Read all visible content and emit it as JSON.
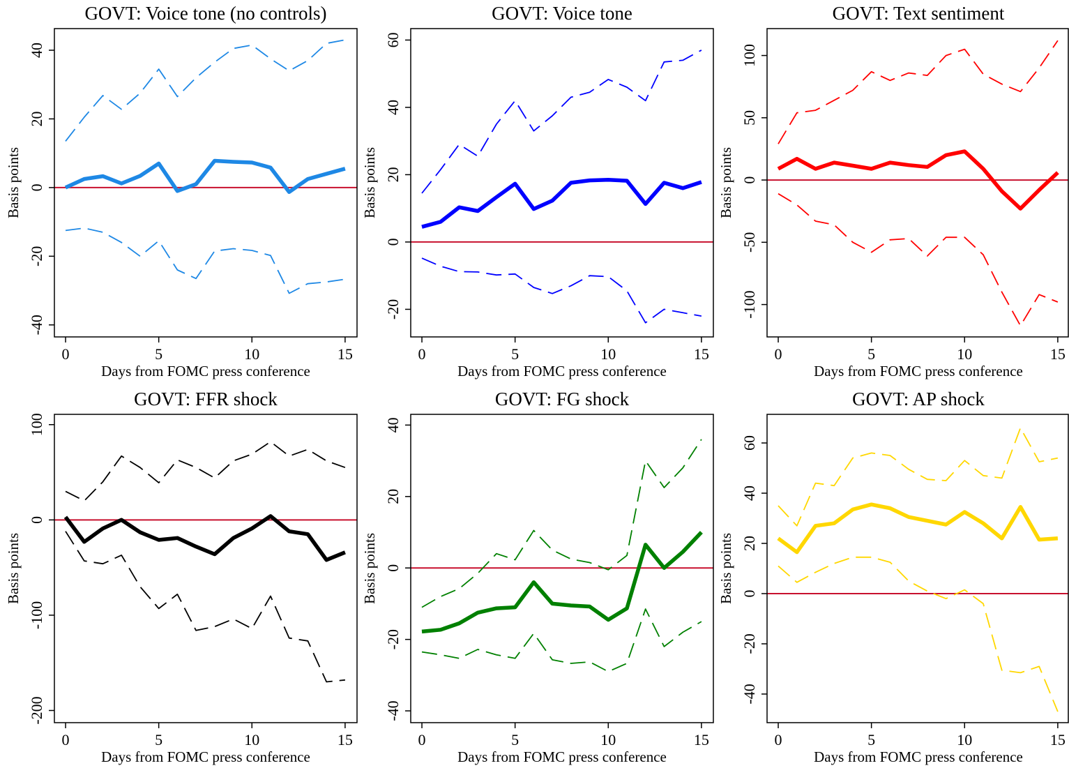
{
  "chart_data": [
    {
      "type": "line",
      "title": "GOVT: Voice tone (no controls)",
      "xlabel": "Days from FOMC press conference",
      "ylabel": "Basis points",
      "x": [
        0,
        1,
        2,
        3,
        4,
        5,
        6,
        7,
        8,
        9,
        10,
        11,
        12,
        13,
        14,
        15
      ],
      "xlim": [
        -0.6,
        15.64
      ],
      "xticks": [
        0,
        5,
        10,
        15
      ],
      "ylim": [
        -43.5,
        46.3
      ],
      "yticks": [
        -40,
        -20,
        0,
        20,
        40
      ],
      "hline": 0,
      "hline_color": "#c8102e",
      "series": [
        {
          "color": "#1e88e5",
          "style": "solid",
          "values": [
            0,
            2.5,
            3.3,
            1.2,
            3.4,
            7,
            -1,
            1,
            7.8,
            7.5,
            7.3,
            5.8,
            -1.3,
            2.5,
            4,
            5.5
          ]
        },
        {
          "color": "#1e88e5",
          "style": "dashed",
          "values": [
            13.5,
            20.5,
            26.8,
            22.8,
            27.5,
            34.5,
            26.5,
            32,
            36.5,
            40.5,
            41.5,
            37.5,
            34,
            37,
            42,
            43
          ]
        },
        {
          "color": "#1e88e5",
          "style": "dashed",
          "values": [
            -12.5,
            -11.8,
            -13,
            -16,
            -20,
            -15.5,
            -24,
            -26.5,
            -18.5,
            -17.8,
            -18.3,
            -19.8,
            -30.8,
            -28,
            -27.5,
            -26.7
          ]
        }
      ]
    },
    {
      "type": "line",
      "title": "GOVT: Voice tone",
      "xlabel": "Days from FOMC press conference",
      "ylabel": "Basis points",
      "x": [
        0,
        1,
        2,
        3,
        4,
        5,
        6,
        7,
        8,
        9,
        10,
        11,
        12,
        13,
        14,
        15
      ],
      "xlim": [
        -0.6,
        15.64
      ],
      "xticks": [
        0,
        5,
        10,
        15
      ],
      "ylim": [
        -28.2,
        63.4
      ],
      "yticks": [
        -20,
        0,
        20,
        40,
        60
      ],
      "hline": 0,
      "hline_color": "#c8102e",
      "series": [
        {
          "color": "#0000ff",
          "style": "solid",
          "values": [
            4.5,
            6,
            10.3,
            9.2,
            13.3,
            17.3,
            9.8,
            12.3,
            17.6,
            18.3,
            18.5,
            18.2,
            11.3,
            17.6,
            16,
            17.8
          ]
        },
        {
          "color": "#0000ff",
          "style": "dashed",
          "values": [
            14.5,
            21.5,
            29,
            25.5,
            35,
            42,
            33,
            37.5,
            43,
            44.5,
            48.3,
            46,
            42,
            53.5,
            54,
            57
          ]
        },
        {
          "color": "#0000ff",
          "style": "dashed",
          "values": [
            -4.8,
            -7.2,
            -8.8,
            -8.9,
            -9.8,
            -9.5,
            -13.5,
            -15.3,
            -13,
            -10,
            -10.3,
            -14.5,
            -24,
            -20,
            -21,
            -22
          ]
        }
      ]
    },
    {
      "type": "line",
      "title": "GOVT: Text sentiment",
      "xlabel": "Days from FOMC press conference",
      "ylabel": "Basis points",
      "x": [
        0,
        1,
        2,
        3,
        4,
        5,
        6,
        7,
        8,
        9,
        10,
        11,
        12,
        13,
        14,
        15
      ],
      "xlim": [
        -0.6,
        15.64
      ],
      "xticks": [
        0,
        5,
        10,
        15
      ],
      "ylim": [
        -126,
        121.6
      ],
      "yticks": [
        -100,
        -50,
        0,
        50,
        100
      ],
      "hline": 0,
      "hline_color": "#c8102e",
      "series": [
        {
          "color": "#ff0000",
          "style": "solid",
          "values": [
            9,
            17,
            9,
            14,
            11.5,
            9,
            14,
            12,
            10.5,
            20,
            23,
            9,
            -9,
            -23,
            -8,
            6
          ]
        },
        {
          "color": "#ff0000",
          "style": "dashed",
          "values": [
            29,
            54,
            56,
            64,
            72,
            87,
            80,
            86,
            84,
            100,
            105,
            85,
            77,
            71,
            90,
            112
          ]
        },
        {
          "color": "#ff0000",
          "style": "dashed",
          "values": [
            -11,
            -20,
            -33,
            -36,
            -50,
            -58,
            -48,
            -47,
            -61,
            -46,
            -46,
            -60,
            -90,
            -117,
            -92,
            -98
          ]
        }
      ]
    },
    {
      "type": "line",
      "title": "GOVT: FFR shock",
      "xlabel": "Days from FOMC press conference",
      "ylabel": "Basis points",
      "x": [
        0,
        1,
        2,
        3,
        4,
        5,
        6,
        7,
        8,
        9,
        10,
        11,
        12,
        13,
        14,
        15
      ],
      "xlim": [
        -0.6,
        15.64
      ],
      "xticks": [
        0,
        5,
        10,
        15
      ],
      "ylim": [
        -212.8,
        110.8
      ],
      "yticks": [
        -200,
        -100,
        0,
        100
      ],
      "hline": 0,
      "hline_color": "#c8102e",
      "series": [
        {
          "color": "#000000",
          "style": "solid",
          "values": [
            3,
            -23,
            -9,
            0,
            -13,
            -21,
            -19,
            -28,
            -36,
            -19,
            -9,
            4,
            -12,
            -15,
            -42,
            -34
          ]
        },
        {
          "color": "#000000",
          "style": "dashed",
          "values": [
            30,
            20,
            40,
            67,
            55,
            39,
            63,
            55,
            44,
            62,
            69,
            82,
            67,
            74,
            62,
            55
          ]
        },
        {
          "color": "#000000",
          "style": "dashed",
          "values": [
            -12,
            -43,
            -46,
            -37,
            -70,
            -93,
            -78,
            -116,
            -112,
            -104,
            -114,
            -80,
            -124,
            -127,
            -170,
            -168
          ]
        }
      ]
    },
    {
      "type": "line",
      "title": "GOVT: FG shock",
      "xlabel": "Days from FOMC press conference",
      "ylabel": "Basis points",
      "x": [
        0,
        1,
        2,
        3,
        4,
        5,
        6,
        7,
        8,
        9,
        10,
        11,
        12,
        13,
        14,
        15
      ],
      "xlim": [
        -0.6,
        15.64
      ],
      "xticks": [
        0,
        5,
        10,
        15
      ],
      "ylim": [
        -43.3,
        43
      ],
      "yticks": [
        -40,
        -20,
        0,
        20,
        40
      ],
      "hline": 0,
      "hline_color": "#c8102e",
      "series": [
        {
          "color": "#008000",
          "style": "solid",
          "values": [
            -17.8,
            -17.3,
            -15.5,
            -12.5,
            -11.3,
            -11,
            -4,
            -10,
            -10.5,
            -10.8,
            -14.5,
            -11.3,
            6.5,
            0,
            4.5,
            10
          ]
        },
        {
          "color": "#008000",
          "style": "dashed",
          "values": [
            -11,
            -8,
            -5.8,
            -1.5,
            4,
            2.3,
            10.5,
            5,
            2.5,
            1.5,
            -0.5,
            3.5,
            30,
            22.5,
            28,
            36
          ]
        },
        {
          "color": "#008000",
          "style": "dashed",
          "values": [
            -23.5,
            -24.3,
            -25.3,
            -22.8,
            -24.3,
            -25.3,
            -18.3,
            -25.7,
            -26.7,
            -26.3,
            -29,
            -26.7,
            -11.5,
            -22,
            -18,
            -15
          ]
        }
      ]
    },
    {
      "type": "line",
      "title": "GOVT: AP shock",
      "xlabel": "Days from FOMC press conference",
      "ylabel": "Basis points",
      "x": [
        0,
        1,
        2,
        3,
        4,
        5,
        6,
        7,
        8,
        9,
        10,
        11,
        12,
        13,
        14,
        15
      ],
      "xlim": [
        -0.6,
        15.64
      ],
      "xticks": [
        0,
        5,
        10,
        15
      ],
      "ylim": [
        -51.4,
        71.4
      ],
      "yticks": [
        -40,
        -20,
        0,
        20,
        40,
        60
      ],
      "hline": 0,
      "hline_color": "#c8102e",
      "series": [
        {
          "color": "#ffd700",
          "style": "solid",
          "values": [
            22,
            16.5,
            27,
            28,
            33.5,
            35.5,
            34,
            30.5,
            29,
            27.5,
            32.5,
            28,
            22,
            34.5,
            21.5,
            22
          ]
        },
        {
          "color": "#ffd700",
          "style": "dashed",
          "values": [
            35,
            27,
            44,
            43,
            54,
            56,
            55,
            49.5,
            45.5,
            45,
            53,
            47,
            46,
            66,
            52.5,
            54
          ]
        },
        {
          "color": "#ffd700",
          "style": "dashed",
          "values": [
            11,
            4.5,
            8.5,
            12,
            14.5,
            14.5,
            12.5,
            5,
            1,
            -2,
            1.5,
            -4,
            -30.5,
            -31.5,
            -29,
            -47
          ]
        }
      ]
    }
  ]
}
